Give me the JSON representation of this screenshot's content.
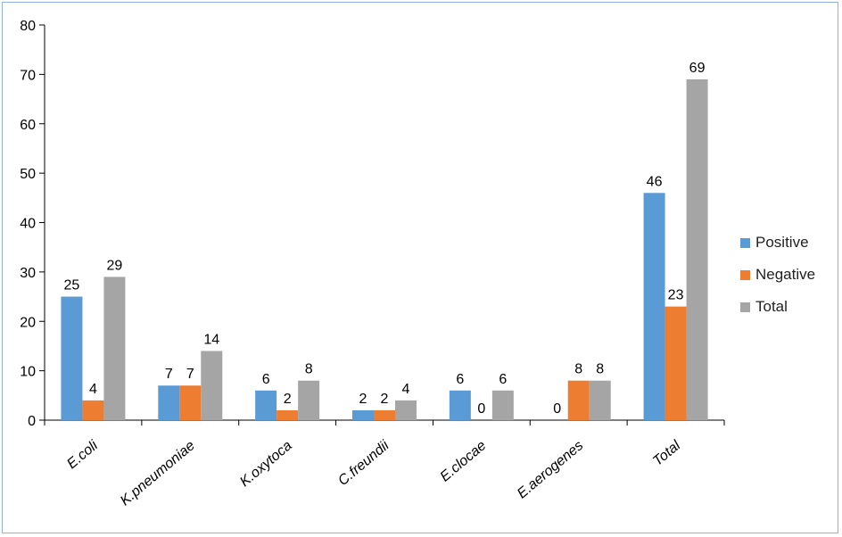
{
  "chart_data": {
    "type": "bar",
    "categories": [
      "E.coli",
      "K.pneumoniae",
      "K.oxytoca",
      "C.freundii",
      "E.clocae",
      "E.aerogenes",
      "Total"
    ],
    "series": [
      {
        "name": "Positive",
        "values": [
          25,
          7,
          6,
          2,
          6,
          0,
          46
        ],
        "color": "#5b9bd5"
      },
      {
        "name": "Negative",
        "values": [
          4,
          7,
          2,
          2,
          0,
          8,
          23
        ],
        "color": "#ed7d31"
      },
      {
        "name": "Total",
        "values": [
          29,
          14,
          8,
          4,
          6,
          8,
          69
        ],
        "color": "#a5a5a5"
      }
    ],
    "ylim": [
      0,
      80
    ],
    "yticks": [
      0,
      10,
      20,
      30,
      40,
      50,
      60,
      70,
      80
    ],
    "grid": false,
    "legend_position": "right",
    "data_labels": true,
    "title": "",
    "xlabel": "",
    "ylabel": ""
  }
}
